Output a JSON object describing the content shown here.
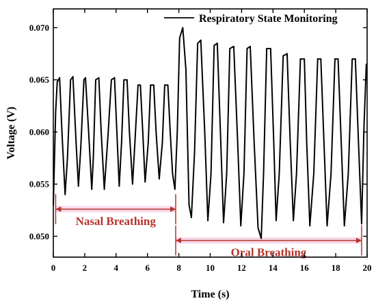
{
  "chart_data": {
    "type": "line",
    "xlabel": "Time (s)",
    "ylabel": "Voltage (V)",
    "xlim": [
      0,
      20
    ],
    "ylim": [
      0.048,
      0.0718
    ],
    "x_ticks": [
      0,
      2,
      4,
      6,
      8,
      10,
      12,
      14,
      16,
      18,
      20
    ],
    "y_ticks": [
      0.05,
      0.055,
      0.06,
      0.065,
      0.07
    ],
    "grid": false,
    "legend_position": "top-right",
    "series": [
      {
        "name": "Respiratory State Monitoring",
        "color": "#000000",
        "x": [
          0.0,
          0.15,
          0.25,
          0.4,
          0.55,
          0.75,
          0.9,
          1.1,
          1.25,
          1.45,
          1.6,
          1.75,
          1.95,
          2.05,
          2.25,
          2.45,
          2.55,
          2.7,
          2.9,
          3.05,
          3.25,
          3.5,
          3.7,
          3.9,
          4.05,
          4.2,
          4.35,
          4.5,
          4.7,
          4.85,
          5.05,
          5.2,
          5.4,
          5.55,
          5.7,
          5.85,
          6.05,
          6.2,
          6.4,
          6.55,
          6.75,
          6.95,
          7.1,
          7.3,
          7.45,
          7.6,
          7.75,
          7.9,
          8.05,
          8.25,
          8.45,
          8.65,
          8.8,
          9.0,
          9.2,
          9.4,
          9.65,
          9.85,
          10.05,
          10.25,
          10.45,
          10.65,
          10.85,
          11.05,
          11.25,
          11.5,
          11.75,
          11.95,
          12.15,
          12.35,
          12.55,
          12.8,
          13.05,
          13.25,
          13.4,
          13.6,
          13.85,
          14.05,
          14.2,
          14.4,
          14.65,
          14.9,
          15.1,
          15.3,
          15.5,
          15.75,
          16.0,
          16.15,
          16.35,
          16.6,
          16.85,
          17.05,
          17.25,
          17.45,
          17.7,
          17.95,
          18.15,
          18.35,
          18.55,
          18.8,
          19.05,
          19.25,
          19.45,
          19.65,
          19.8,
          19.95
        ],
        "y": [
          0.053,
          0.062,
          0.0648,
          0.0652,
          0.06,
          0.054,
          0.0575,
          0.065,
          0.0653,
          0.059,
          0.0548,
          0.0585,
          0.065,
          0.0652,
          0.06,
          0.0545,
          0.0575,
          0.065,
          0.0652,
          0.06,
          0.0545,
          0.06,
          0.065,
          0.0652,
          0.06,
          0.0548,
          0.059,
          0.065,
          0.065,
          0.06,
          0.055,
          0.059,
          0.0645,
          0.0645,
          0.06,
          0.0552,
          0.059,
          0.0645,
          0.0645,
          0.06,
          0.0555,
          0.059,
          0.0645,
          0.0645,
          0.06,
          0.056,
          0.0545,
          0.06,
          0.069,
          0.07,
          0.066,
          0.053,
          0.0518,
          0.058,
          0.0685,
          0.0688,
          0.06,
          0.0515,
          0.056,
          0.0683,
          0.0685,
          0.06,
          0.0513,
          0.056,
          0.068,
          0.0682,
          0.059,
          0.051,
          0.056,
          0.068,
          0.0682,
          0.059,
          0.0508,
          0.0498,
          0.056,
          0.068,
          0.068,
          0.059,
          0.0515,
          0.056,
          0.0673,
          0.0675,
          0.059,
          0.0515,
          0.056,
          0.067,
          0.067,
          0.059,
          0.051,
          0.056,
          0.067,
          0.067,
          0.059,
          0.051,
          0.056,
          0.067,
          0.067,
          0.059,
          0.051,
          0.056,
          0.067,
          0.067,
          0.059,
          0.0512,
          0.0605,
          0.0665
        ]
      }
    ],
    "annotations": [
      {
        "label": "Nasal Breathing",
        "x_start": 0.15,
        "x_end": 7.8,
        "y": 0.0526
      },
      {
        "label": "Oral Breathing",
        "x_start": 7.8,
        "x_end": 19.65,
        "y": 0.0496
      }
    ],
    "annotation_color": "#b5342c",
    "annotation_fill": "#f7d8ea"
  }
}
